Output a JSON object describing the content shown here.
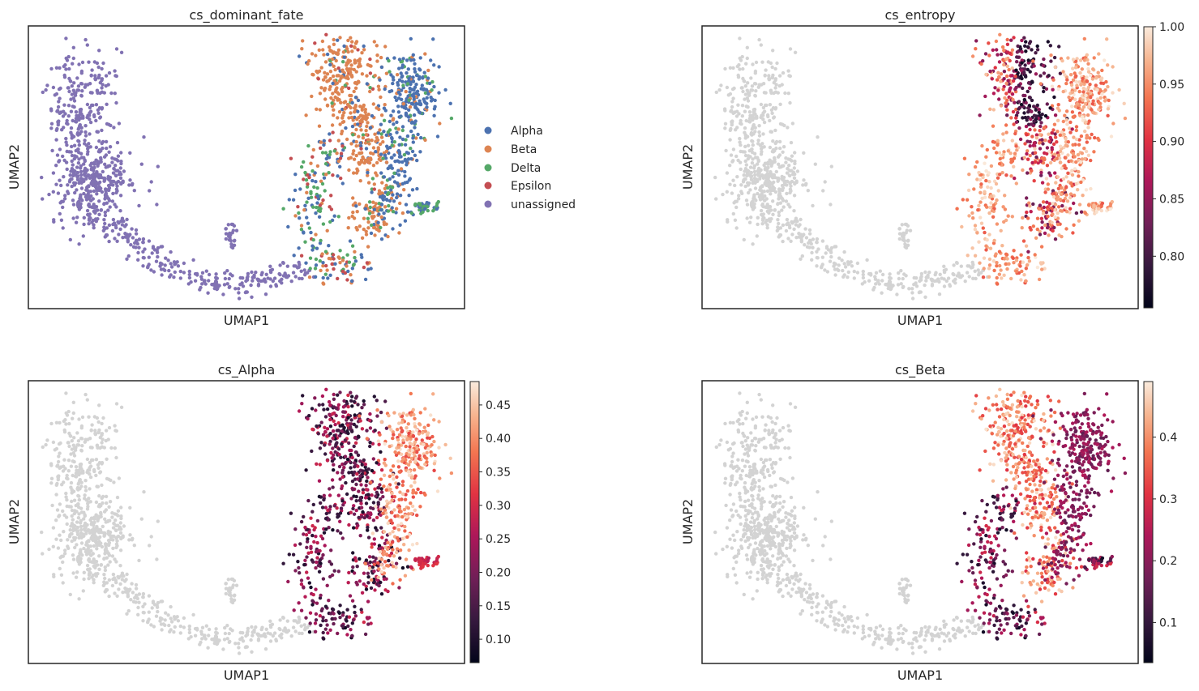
{
  "colors": {
    "grey": "#d3d3d3",
    "fate": {
      "Alpha": "#4c72b0",
      "Beta": "#dd8452",
      "Delta": "#55a868",
      "Epsilon": "#c44e52",
      "unassigned": "#8172b3"
    },
    "colormap": "rocket",
    "frame": "#262626"
  },
  "chart_data": [
    {
      "type": "scatter",
      "title": "cs_dominant_fate",
      "xlabel": "UMAP1",
      "ylabel": "UMAP2",
      "color_by": "categorical",
      "legend": {
        "placement": "right",
        "entries": [
          "Alpha",
          "Beta",
          "Delta",
          "Epsilon",
          "unassigned"
        ]
      }
    },
    {
      "type": "scatter",
      "title": "cs_entropy",
      "xlabel": "UMAP1",
      "ylabel": "UMAP2",
      "color_by": "continuous",
      "colorbar": {
        "range": [
          0.755,
          1.0
        ],
        "ticks": [
          "0.80",
          "0.85",
          "0.90",
          "0.95",
          "1.00"
        ],
        "tick_values": [
          0.8,
          0.85,
          0.9,
          0.95,
          1.0
        ]
      }
    },
    {
      "type": "scatter",
      "title": "cs_Alpha",
      "xlabel": "UMAP1",
      "ylabel": "UMAP2",
      "color_by": "continuous",
      "colorbar": {
        "range": [
          0.065,
          0.485
        ],
        "ticks": [
          "0.10",
          "0.15",
          "0.20",
          "0.25",
          "0.30",
          "0.35",
          "0.40",
          "0.45"
        ],
        "tick_values": [
          0.1,
          0.15,
          0.2,
          0.25,
          0.3,
          0.35,
          0.4,
          0.45
        ]
      }
    },
    {
      "type": "scatter",
      "title": "cs_Beta",
      "xlabel": "UMAP1",
      "ylabel": "UMAP2",
      "color_by": "continuous",
      "colorbar": {
        "range": [
          0.035,
          0.49
        ],
        "ticks": [
          "0.1",
          "0.2",
          "0.3",
          "0.4"
        ],
        "tick_values": [
          0.1,
          0.2,
          0.3,
          0.4
        ]
      }
    }
  ]
}
